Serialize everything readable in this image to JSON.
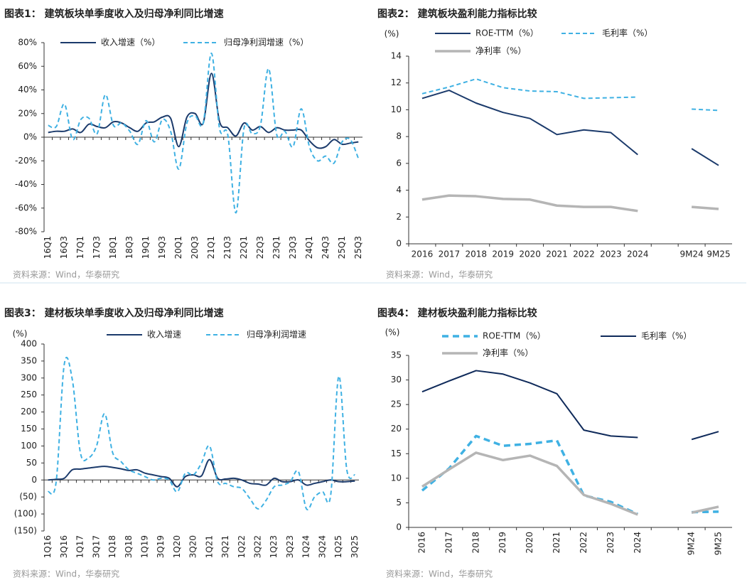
{
  "chart_data": [
    {
      "type": "line",
      "title": "图表1：  建筑板块单季度收入及归母净利同比增速",
      "source": "资料来源：Wind，华泰研究",
      "smooth": true,
      "categories": [
        "16Q1",
        null,
        "16Q3",
        null,
        "17Q1",
        null,
        "17Q3",
        null,
        "18Q1",
        null,
        "18Q3",
        null,
        "19Q1",
        null,
        "19Q3",
        null,
        "20Q1",
        null,
        "20Q3",
        null,
        "21Q1",
        null,
        "21Q3",
        null,
        "22Q1",
        null,
        "22Q3",
        null,
        "23Q1",
        null,
        "23Q3",
        null,
        "24Q1",
        null,
        "24Q3",
        null,
        "25Q1",
        null,
        "25Q3"
      ],
      "ylim": [
        -80,
        80
      ],
      "yticks": [
        {
          "value": -80,
          "label": "-80%"
        },
        {
          "value": -60,
          "label": "-60%"
        },
        {
          "value": -40,
          "label": "-40%"
        },
        {
          "value": -20,
          "label": "-20%"
        },
        {
          "value": 0,
          "label": "0%"
        },
        {
          "value": 20,
          "label": "20%"
        },
        {
          "value": 40,
          "label": "40%"
        },
        {
          "value": 60,
          "label": "60%"
        },
        {
          "value": 80,
          "label": "80%"
        }
      ],
      "series": [
        {
          "name": "收入增速（%）",
          "color": "#1b3a6b",
          "dash": false,
          "thick": false,
          "values": [
            4,
            5,
            5,
            7,
            4,
            11,
            9,
            8,
            13,
            12,
            8,
            5,
            12,
            13,
            17,
            16,
            -8,
            17,
            20,
            12,
            54,
            13,
            8,
            1,
            12,
            6,
            9,
            4,
            8,
            6,
            6,
            6,
            -3,
            -9,
            -8,
            -2,
            -6,
            -5,
            -4
          ]
        },
        {
          "name": "归母净利润增速（%）",
          "color": "#3fb1e3",
          "dash": true,
          "thick": false,
          "values": [
            10,
            9,
            28,
            -2,
            15,
            16,
            3,
            36,
            10,
            12,
            5,
            -6,
            14,
            -4,
            15,
            5,
            -27,
            12,
            18,
            12,
            71,
            7,
            2,
            -64,
            8,
            3,
            10,
            58,
            2,
            5,
            -8,
            24,
            -8,
            -20,
            -16,
            -22,
            -4,
            -2,
            -18
          ]
        }
      ]
    },
    {
      "type": "line",
      "title": "图表2：  建筑板块盈利能力指标比较",
      "source": "资料来源：Wind，华泰研究",
      "smooth": false,
      "ylabel": "(%)",
      "categories": [
        "2016",
        "2017",
        "2018",
        "2019",
        "2020",
        "2021",
        "2022",
        "2023",
        "2024",
        null,
        "9M24",
        "9M25"
      ],
      "ylim": [
        0,
        14
      ],
      "yticks": [
        0,
        2,
        4,
        6,
        8,
        10,
        12,
        14
      ],
      "series": [
        {
          "name": "ROE-TTM（%）",
          "color": "#1b3a6b",
          "dash": false,
          "thick": false,
          "values": [
            10.85,
            11.45,
            10.5,
            9.8,
            9.35,
            8.15,
            8.5,
            8.3,
            6.65,
            null,
            7.1,
            5.85
          ]
        },
        {
          "name": "毛利率（%）",
          "color": "#3fb1e3",
          "dash": true,
          "thick": false,
          "values": [
            11.2,
            11.7,
            12.3,
            11.65,
            11.4,
            11.35,
            10.85,
            10.9,
            10.95,
            null,
            10.05,
            9.95
          ]
        },
        {
          "name": "净利率（%）",
          "color": "#b5b5b5",
          "dash": false,
          "thick": true,
          "values": [
            3.3,
            3.6,
            3.55,
            3.35,
            3.3,
            2.85,
            2.75,
            2.75,
            2.45,
            null,
            2.75,
            2.6
          ]
        }
      ]
    },
    {
      "type": "line",
      "title": "图表3：  建材板块单季度收入及归母净利同比增速",
      "source": "资料来源：Wind，华泰研究",
      "smooth": true,
      "ylabel": "(%)",
      "categories": [
        "1Q16",
        null,
        "3Q16",
        null,
        "1Q17",
        null,
        "3Q17",
        null,
        "1Q18",
        null,
        "3Q18",
        null,
        "1Q19",
        null,
        "3Q19",
        null,
        "1Q20",
        null,
        "3Q20",
        null,
        "1Q21",
        null,
        "3Q21",
        null,
        "1Q22",
        null,
        "3Q22",
        null,
        "1Q23",
        null,
        "3Q23",
        null,
        "1Q24",
        null,
        "3Q24",
        null,
        "1Q25",
        null,
        "3Q25"
      ],
      "ylim": [
        -150,
        400
      ],
      "yticks": [
        {
          "value": -150,
          "label": "(150)"
        },
        {
          "value": -100,
          "label": "(100)"
        },
        {
          "value": -50,
          "label": "(50)"
        },
        0,
        50,
        100,
        150,
        200,
        250,
        300,
        350,
        400
      ],
      "series": [
        {
          "name": "收入增速",
          "color": "#1b3a6b",
          "dash": false,
          "thick": false,
          "values": [
            0,
            2,
            5,
            30,
            32,
            35,
            38,
            40,
            37,
            33,
            28,
            30,
            20,
            15,
            10,
            5,
            -20,
            10,
            15,
            12,
            60,
            5,
            3,
            5,
            0,
            -10,
            -12,
            -15,
            5,
            -5,
            -5,
            0,
            -15,
            -10,
            -5,
            0,
            -5,
            -5,
            -3
          ]
        },
        {
          "name": "归母净利润增速",
          "color": "#3fb1e3",
          "dash": true,
          "thick": false,
          "values": [
            -35,
            -5,
            340,
            295,
            80,
            65,
            100,
            195,
            80,
            55,
            30,
            20,
            10,
            0,
            5,
            0,
            -35,
            20,
            15,
            50,
            100,
            -5,
            -10,
            -20,
            -25,
            -55,
            -85,
            -60,
            -20,
            -15,
            -5,
            25,
            -85,
            -50,
            -35,
            -45,
            305,
            30,
            15
          ]
        }
      ]
    },
    {
      "type": "line",
      "title": "图表4：  建材板块盈利能力指标比较",
      "source": "资料来源：Wind，华泰研究",
      "smooth": false,
      "ylabel": "(%)",
      "categories": [
        "2016",
        "2017",
        "2018",
        "2019",
        "2020",
        "2021",
        "2022",
        "2023",
        "2024",
        null,
        "9M24",
        "9M25"
      ],
      "ylim": [
        0,
        35
      ],
      "yticks": [
        0,
        5,
        10,
        15,
        20,
        25,
        30,
        35
      ],
      "series": [
        {
          "name": "ROE-TTM（%）",
          "color": "#3fb1e3",
          "dash": true,
          "thick": true,
          "values": [
            7.5,
            12,
            18.6,
            16.6,
            17,
            17.7,
            6.5,
            5.2,
            2.7,
            null,
            3.1,
            3.2
          ]
        },
        {
          "name": "毛利率（%）",
          "color": "#0f2a5a",
          "dash": false,
          "thick": false,
          "values": [
            27.6,
            29.8,
            31.9,
            31.2,
            29.4,
            27.2,
            19.8,
            18.6,
            18.3,
            null,
            17.9,
            19.5
          ]
        },
        {
          "name": "净利率（%）",
          "color": "#b5b5b5",
          "dash": false,
          "thick": true,
          "values": [
            8.3,
            11.8,
            15.2,
            13.7,
            14.6,
            12.5,
            6.6,
            4.8,
            2.6,
            null,
            3.0,
            4.2
          ]
        }
      ]
    }
  ]
}
